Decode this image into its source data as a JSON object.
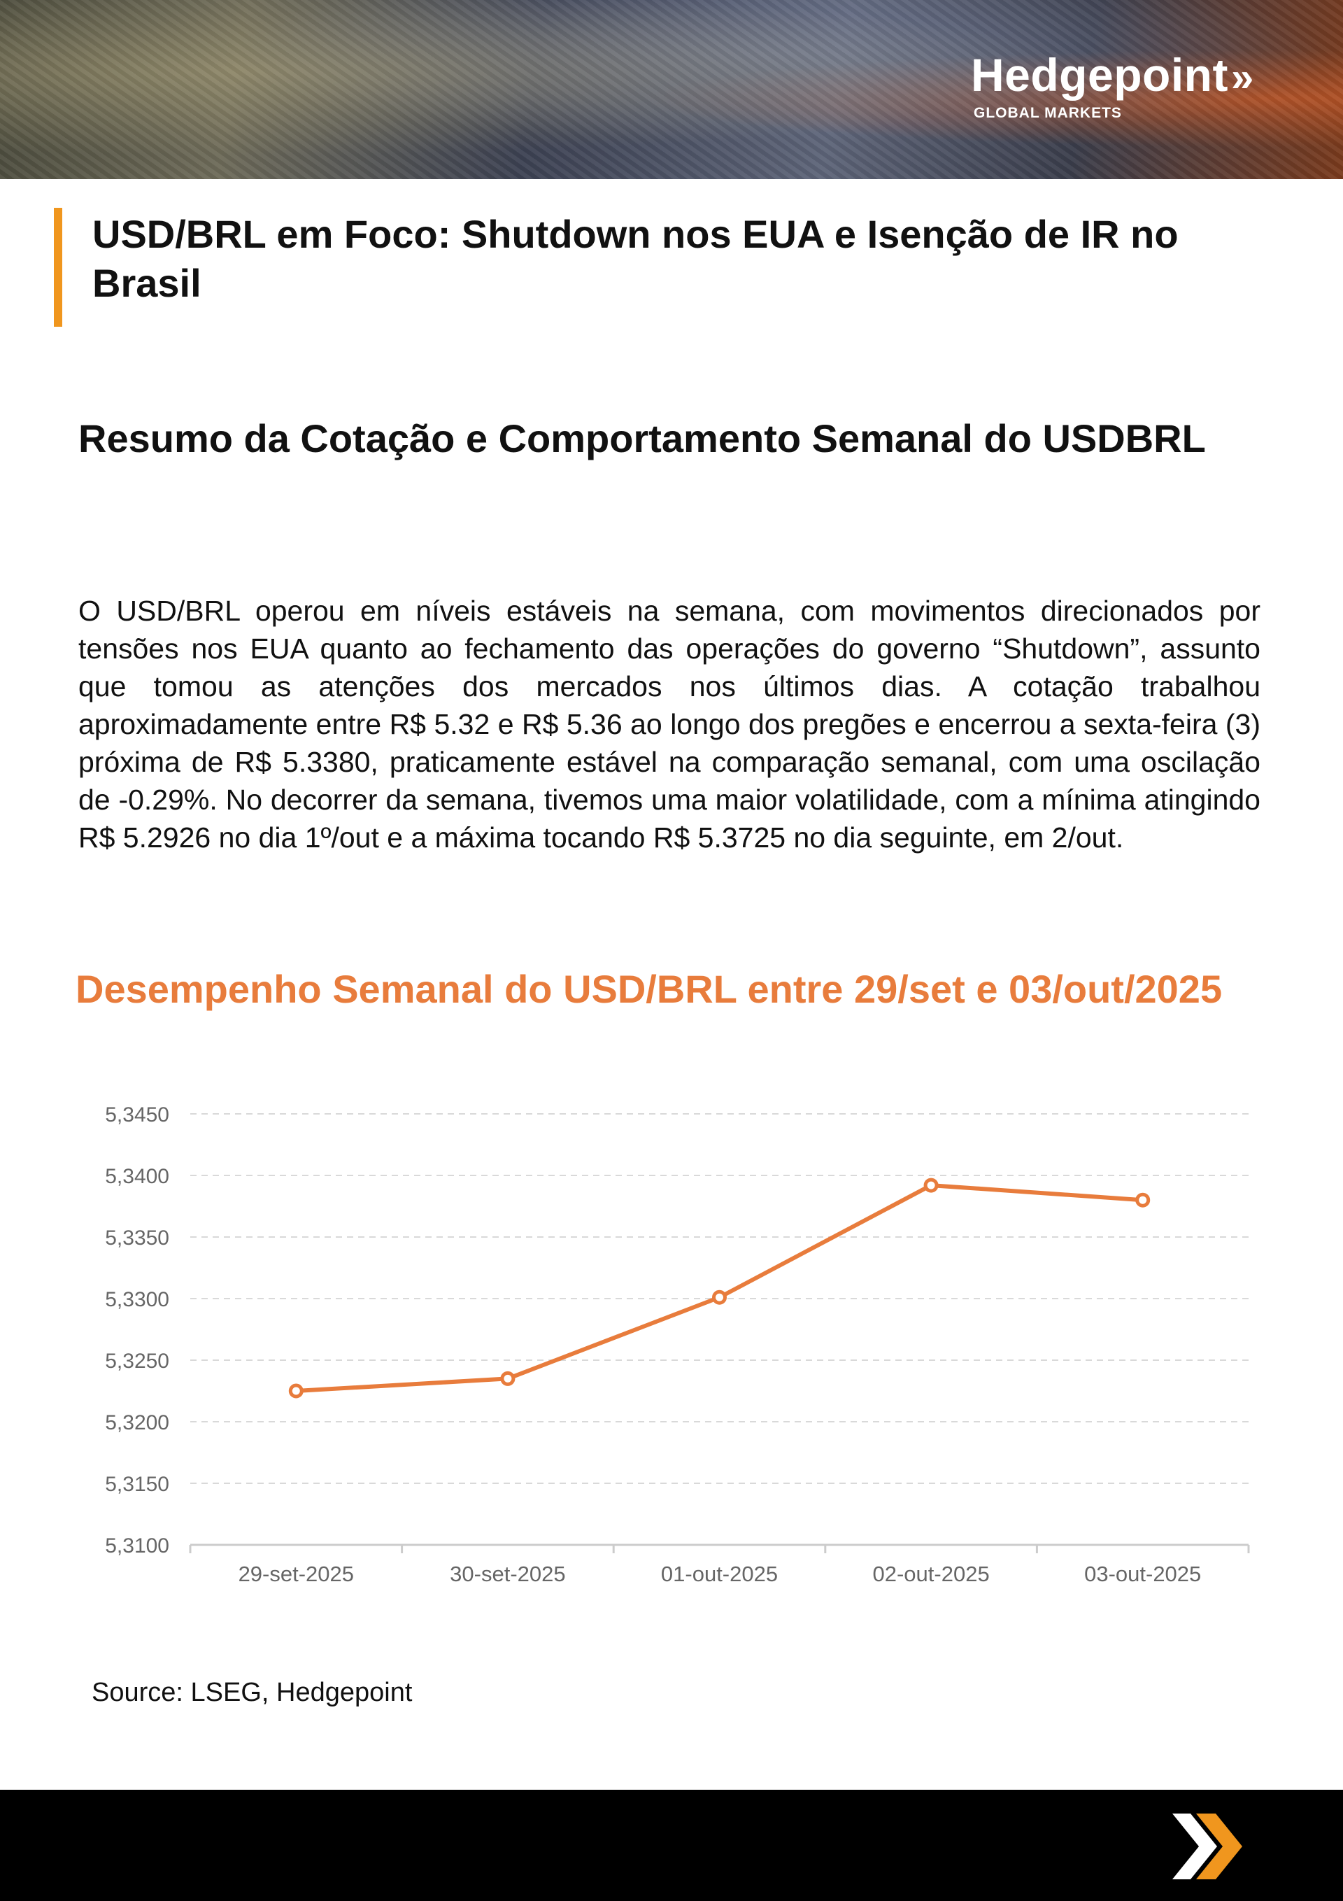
{
  "brand": {
    "name": "Hedgepoint",
    "chevron": "»",
    "subtitle": "GLOBAL MARKETS"
  },
  "document": {
    "title": "USD/BRL em Foco: Shutdown nos EUA e Isenção de IR no Brasil",
    "section_title": "Resumo da Cotação e Comportamento Semanal do USDBRL",
    "body": "O USD/BRL operou em níveis estáveis na semana, com movimentos direcionados por tensões nos EUA quanto ao fechamento das operações do governo “Shutdown”, assunto que tomou as atenções dos mercados nos últimos dias. A cotação trabalhou aproximadamente entre R$ 5.32 e R$ 5.36 ao longo dos pregões e encerrou a sexta-feira (3) próxima de R$ 5.3380, praticamente estável na comparação semanal, com uma oscilação de -0.29%. No decorrer da semana, tivemos uma maior volatilidade, com a mínima atingindo R$ 5.2926 no dia 1º/out e a máxima tocando R$ 5.3725 no dia seguinte, em 2/out.",
    "source": "Source: LSEG, Hedgepoint"
  },
  "colors": {
    "accent_bar": "#f0961e",
    "chart_line": "#e87c3c",
    "footer": "#000000"
  },
  "chart_data": {
    "type": "line",
    "title": "Desempenho Semanal do USD/BRL entre 29/set e 03/out/2025",
    "categories": [
      "29-set-2025",
      "30-set-2025",
      "01-out-2025",
      "02-out-2025",
      "03-out-2025"
    ],
    "series": [
      {
        "name": "USD/BRL",
        "values": [
          5.3225,
          5.3235,
          5.3301,
          5.3392,
          5.338
        ]
      }
    ],
    "ylim": [
      5.31,
      5.345
    ],
    "yticks": [
      5.345,
      5.34,
      5.335,
      5.33,
      5.325,
      5.32,
      5.315,
      5.31
    ],
    "ytick_labels": [
      "5,3450",
      "5,3400",
      "5,3350",
      "5,3300",
      "5,3250",
      "5,3200",
      "5,3150",
      "5,3100"
    ],
    "grid": true,
    "xlabel": "",
    "ylabel": ""
  }
}
